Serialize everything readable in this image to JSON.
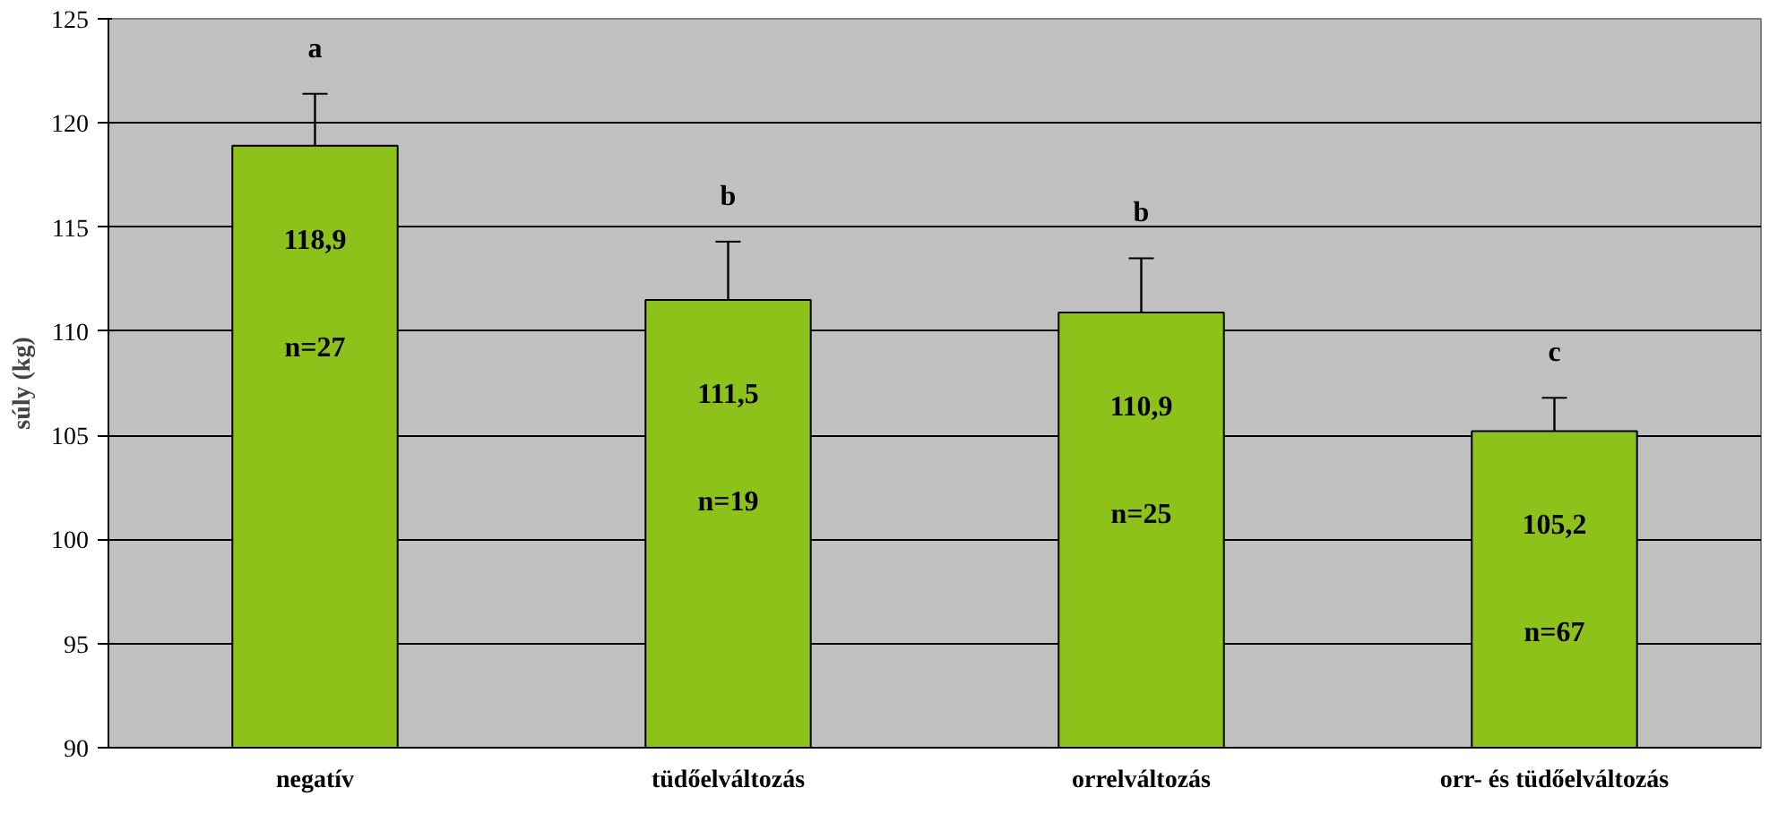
{
  "chart_data": {
    "type": "bar",
    "ylabel": "súly (kg)",
    "categories": [
      "negatív",
      "tüdőelváltozás",
      "orrelváltozás",
      "orr- és tüdőelváltozás"
    ],
    "values": [
      118.9,
      111.5,
      110.9,
      105.2
    ],
    "value_labels": [
      "118,9",
      "111,5",
      "110,9",
      "105,2"
    ],
    "errors": [
      2.5,
      2.8,
      2.6,
      1.6
    ],
    "color": "#8cc21a",
    "ylim": [
      90,
      125
    ],
    "yticks": [
      90,
      95,
      100,
      105,
      110,
      115,
      120,
      125
    ],
    "grid": "y",
    "annotations": [
      "a",
      "b",
      "b",
      "c",
      "n=27",
      "n=19",
      "n=25",
      "n=67"
    ]
  }
}
